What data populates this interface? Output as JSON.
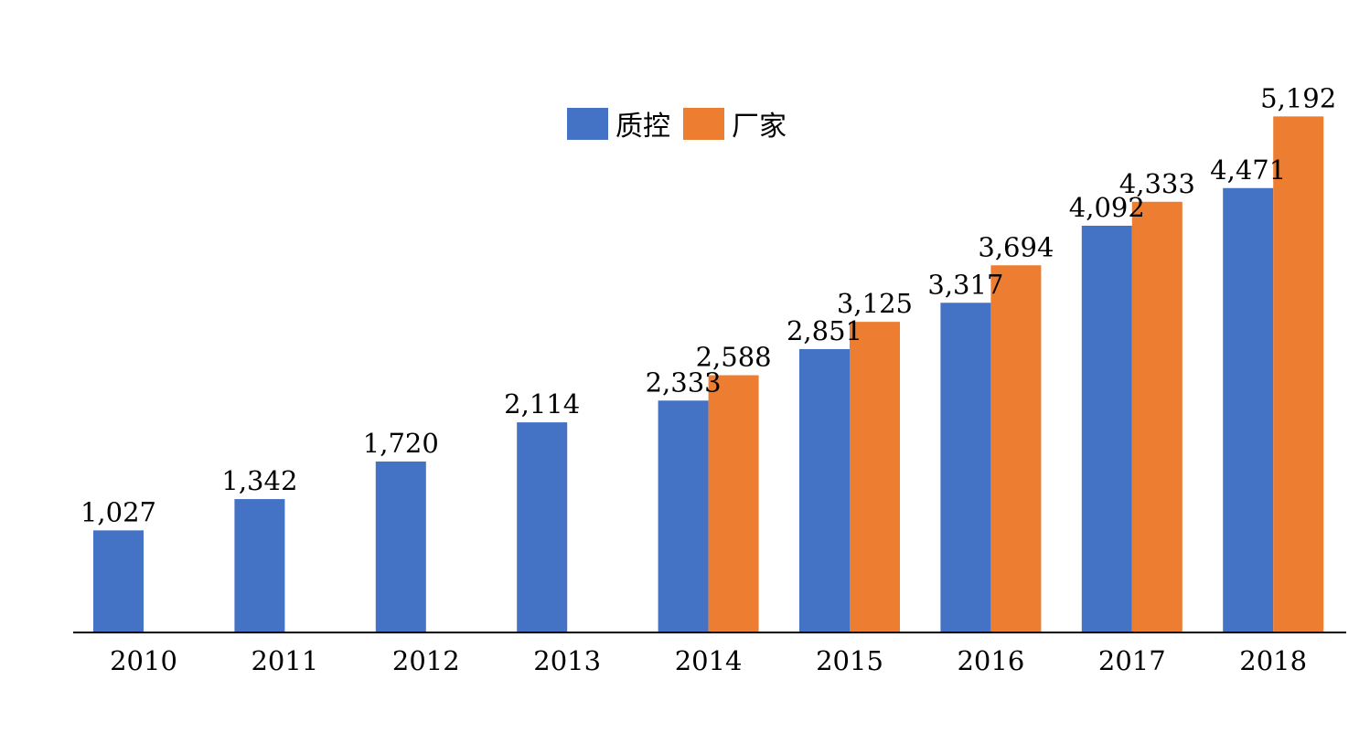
{
  "chart_data": {
    "type": "bar",
    "categories": [
      "2010",
      "2011",
      "2012",
      "2013",
      "2014",
      "2015",
      "2016",
      "2017",
      "2018"
    ],
    "series": [
      {
        "name": "质控",
        "color": "#4472C4",
        "values": [
          1027,
          1342,
          1720,
          2114,
          2333,
          2851,
          3317,
          4092,
          4471
        ],
        "labels": [
          "1,027",
          "1,342",
          "1,720",
          "2,114",
          "2,333",
          "2,851",
          "3,317",
          "4,092",
          "4,471"
        ]
      },
      {
        "name": "厂家",
        "color": "#ED7D31",
        "values": [
          null,
          null,
          null,
          null,
          2588,
          3125,
          3694,
          4333,
          5192
        ],
        "labels": [
          "",
          "",
          "",
          "",
          "2,588",
          "3,125",
          "3,694",
          "4,333",
          "5,192"
        ]
      }
    ],
    "title": "",
    "xlabel": "",
    "ylabel": "",
    "ylim": [
      0,
      5200
    ],
    "grid": false,
    "legend_position": "top"
  }
}
